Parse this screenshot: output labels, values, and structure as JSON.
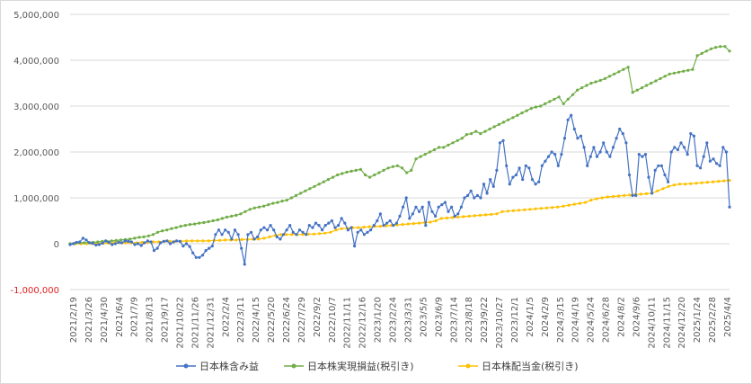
{
  "chart_data": {
    "type": "line",
    "colors": {
      "unrealized": "#4472c4",
      "realized": "#70ad47",
      "dividend": "#ffc000",
      "grid": "#d9d9d9",
      "negative_tick": "#e02020"
    },
    "ylim": [
      -1000000,
      5000000
    ],
    "yticks": [
      {
        "value": 5000000,
        "label": "5,000,000"
      },
      {
        "value": 4000000,
        "label": "4,000,000"
      },
      {
        "value": 3000000,
        "label": "3,000,000"
      },
      {
        "value": 2000000,
        "label": "2,000,000"
      },
      {
        "value": 1000000,
        "label": "1,000,000"
      },
      {
        "value": 0,
        "label": "0"
      },
      {
        "value": -1000000,
        "label": "-1,000,000"
      }
    ],
    "xtick_labels": [
      "2021/2/19",
      "2021/3/26",
      "2021/4/30",
      "2021/6/4",
      "2021/7/9",
      "2021/8/13",
      "2021/9/17",
      "2021/10/22",
      "2021/11/26",
      "2021/12/31",
      "2022/2/4",
      "2022/3/11",
      "2022/4/15",
      "2022/5/20",
      "2022/6/24",
      "2022/7/29",
      "2022/9/2",
      "2022/10/7",
      "2022/11/11",
      "2022/12/16",
      "2023/1/20",
      "2023/2/24",
      "2023/3/31",
      "2023/5/5",
      "2023/6/9",
      "2023/7/14",
      "2023/8/18",
      "2023/9/22",
      "2023/10/27",
      "2023/12/1",
      "2024/1/5",
      "2024/2/9",
      "2024/3/15",
      "2024/4/19",
      "2024/5/24",
      "2024/6/28",
      "2024/8/2",
      "2024/9/6",
      "2024/10/11",
      "2024/11/15",
      "2024/12/20",
      "2025/1/24",
      "2025/2/28",
      "2025/4/4"
    ],
    "grid": true,
    "legend_position": "bottom",
    "series": [
      {
        "key": "unrealized",
        "name": "日本株含み益",
        "values": [
          -20000,
          0,
          30000,
          40000,
          120000,
          80000,
          20000,
          10000,
          -30000,
          -20000,
          10000,
          60000,
          30000,
          -20000,
          0,
          30000,
          20000,
          60000,
          50000,
          40000,
          -20000,
          0,
          -40000,
          20000,
          60000,
          40000,
          -150000,
          -100000,
          20000,
          50000,
          60000,
          0,
          40000,
          60000,
          50000,
          -50000,
          0,
          -60000,
          -200000,
          -300000,
          -300000,
          -250000,
          -150000,
          -100000,
          -50000,
          200000,
          300000,
          200000,
          300000,
          250000,
          100000,
          300000,
          200000,
          -100000,
          -450000,
          200000,
          250000,
          100000,
          150000,
          300000,
          350000,
          300000,
          400000,
          300000,
          150000,
          100000,
          200000,
          300000,
          400000,
          250000,
          200000,
          300000,
          250000,
          200000,
          400000,
          350000,
          450000,
          400000,
          300000,
          400000,
          450000,
          500000,
          350000,
          400000,
          550000,
          450000,
          300000,
          350000,
          -50000,
          250000,
          300000,
          200000,
          250000,
          300000,
          400000,
          500000,
          650000,
          400000,
          450000,
          500000,
          400000,
          450000,
          600000,
          800000,
          1000000,
          550000,
          650000,
          800000,
          700000,
          800000,
          400000,
          900000,
          700000,
          600000,
          800000,
          850000,
          900000,
          700000,
          800000,
          600000,
          650000,
          800000,
          1000000,
          1050000,
          1150000,
          1000000,
          1050000,
          1000000,
          1300000,
          1100000,
          1400000,
          1250000,
          1600000,
          2200000,
          2250000,
          1700000,
          1300000,
          1450000,
          1500000,
          1650000,
          1400000,
          1700000,
          1650000,
          1400000,
          1300000,
          1350000,
          1700000,
          1800000,
          1900000,
          2000000,
          1950000,
          1700000,
          1950000,
          2300000,
          2700000,
          2800000,
          2500000,
          2300000,
          2350000,
          2100000,
          1700000,
          1900000,
          2100000,
          1900000,
          2000000,
          2200000,
          2000000,
          1900000,
          2100000,
          2300000,
          2500000,
          2400000,
          2200000,
          1500000,
          1050000,
          1050000,
          1950000,
          1900000,
          1950000,
          1450000,
          1100000,
          1600000,
          1700000,
          1700000,
          1500000,
          1350000,
          2000000,
          2100000,
          2050000,
          2200000,
          2100000,
          1950000,
          2400000,
          2350000,
          1700000,
          1650000,
          1900000,
          2200000,
          1800000,
          1850000,
          1750000,
          1700000,
          2100000,
          2000000,
          800000
        ]
      },
      {
        "key": "realized",
        "name": "日本株実現損益(税引き)",
        "values": [
          0,
          10000,
          20000,
          20000,
          30000,
          30000,
          40000,
          50000,
          50000,
          60000,
          70000,
          80000,
          90000,
          100000,
          120000,
          140000,
          150000,
          170000,
          200000,
          250000,
          280000,
          300000,
          330000,
          350000,
          380000,
          400000,
          420000,
          430000,
          450000,
          460000,
          480000,
          500000,
          520000,
          550000,
          580000,
          600000,
          620000,
          650000,
          700000,
          750000,
          780000,
          800000,
          820000,
          850000,
          880000,
          900000,
          930000,
          950000,
          1000000,
          1050000,
          1100000,
          1150000,
          1200000,
          1250000,
          1300000,
          1350000,
          1400000,
          1450000,
          1500000,
          1530000,
          1560000,
          1580000,
          1600000,
          1620000,
          1500000,
          1450000,
          1500000,
          1550000,
          1600000,
          1650000,
          1680000,
          1700000,
          1650000,
          1550000,
          1600000,
          1850000,
          1900000,
          1950000,
          2000000,
          2050000,
          2100000,
          2100000,
          2150000,
          2200000,
          2250000,
          2300000,
          2380000,
          2400000,
          2450000,
          2400000,
          2450000,
          2500000,
          2550000,
          2600000,
          2650000,
          2700000,
          2750000,
          2800000,
          2850000,
          2900000,
          2950000,
          2980000,
          3000000,
          3050000,
          3100000,
          3150000,
          3200000,
          3050000,
          3150000,
          3250000,
          3350000,
          3400000,
          3450000,
          3500000,
          3530000,
          3560000,
          3600000,
          3650000,
          3700000,
          3750000,
          3800000,
          3850000,
          3300000,
          3350000,
          3400000,
          3450000,
          3500000,
          3550000,
          3600000,
          3650000,
          3700000,
          3720000,
          3740000,
          3760000,
          3780000,
          3800000,
          4100000,
          4150000,
          4200000,
          4250000,
          4280000,
          4300000,
          4300000,
          4200000
        ]
      },
      {
        "key": "dividend",
        "name": "日本株配当金(税引き)",
        "values": [
          0,
          0,
          0,
          0,
          0,
          10000,
          10000,
          10000,
          20000,
          20000,
          20000,
          20000,
          20000,
          30000,
          30000,
          40000,
          40000,
          50000,
          50000,
          50000,
          50000,
          60000,
          60000,
          60000,
          60000,
          60000,
          70000,
          70000,
          80000,
          80000,
          80000,
          90000,
          90000,
          100000,
          100000,
          120000,
          150000,
          180000,
          200000,
          200000,
          200000,
          200000,
          200000,
          210000,
          210000,
          220000,
          230000,
          250000,
          300000,
          330000,
          340000,
          350000,
          350000,
          360000,
          370000,
          380000,
          380000,
          390000,
          400000,
          410000,
          420000,
          430000,
          440000,
          450000,
          460000,
          470000,
          500000,
          550000,
          560000,
          570000,
          580000,
          590000,
          600000,
          610000,
          620000,
          630000,
          640000,
          650000,
          700000,
          710000,
          720000,
          730000,
          740000,
          750000,
          760000,
          770000,
          780000,
          790000,
          800000,
          820000,
          840000,
          860000,
          880000,
          900000,
          950000,
          980000,
          1000000,
          1020000,
          1030000,
          1040000,
          1050000,
          1060000,
          1070000,
          1080000,
          1090000,
          1100000,
          1150000,
          1200000,
          1250000,
          1280000,
          1300000,
          1300000,
          1310000,
          1320000,
          1330000,
          1340000,
          1350000,
          1360000,
          1370000,
          1380000
        ]
      }
    ]
  }
}
